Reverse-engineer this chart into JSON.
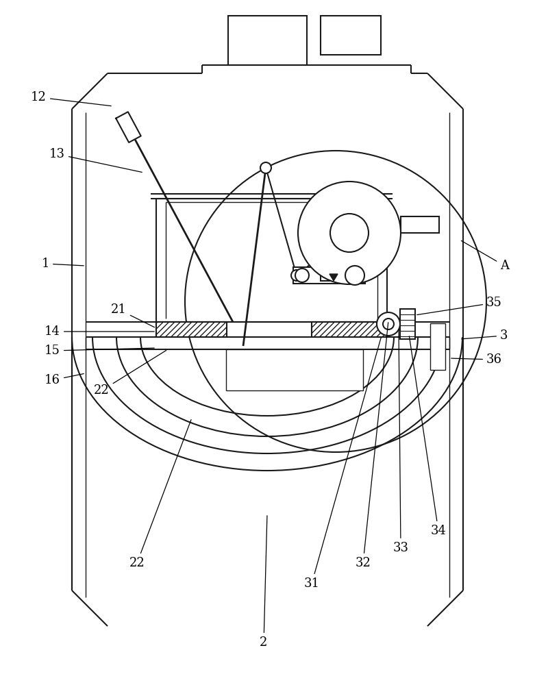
{
  "bg": "#ffffff",
  "lc": "#1a1a1a",
  "lw": 1.5,
  "lw2": 1.0,
  "lw3": 2.0,
  "fs": 13
}
